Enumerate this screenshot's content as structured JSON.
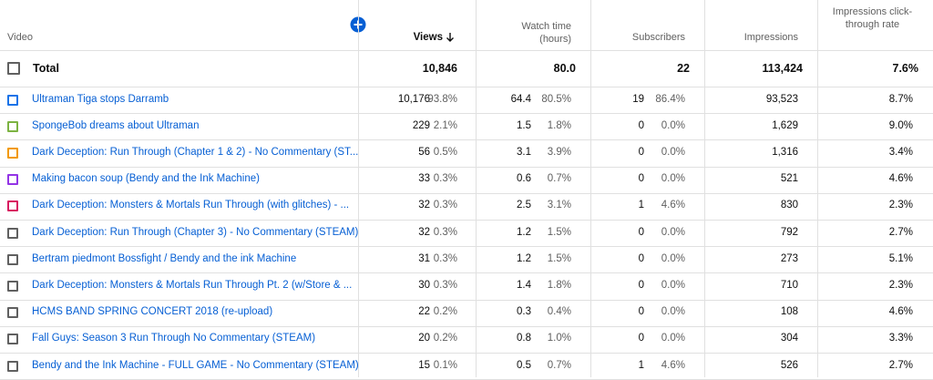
{
  "header": {
    "video": "Video",
    "views": "Views",
    "watch_time": "Watch time (hours)",
    "subscribers": "Subscribers",
    "impressions": "Impressions",
    "ctr": "Impressions click-through rate"
  },
  "total": {
    "label": "Total",
    "views": "10,846",
    "watch_time": "80.0",
    "subscribers": "22",
    "impressions": "113,424",
    "ctr": "7.6%"
  },
  "rows": [
    {
      "title": "Ultraman Tiga stops Darramb",
      "color": "#1a73e8",
      "views": "10,176",
      "views_pct": "93.8%",
      "watch": "64.4",
      "watch_pct": "80.5%",
      "subs": "19",
      "subs_pct": "86.4%",
      "impressions": "93,523",
      "ctr": "8.7%"
    },
    {
      "title": "SpongeBob dreams about Ultraman",
      "color": "#7cb342",
      "views": "229",
      "views_pct": "2.1%",
      "watch": "1.5",
      "watch_pct": "1.8%",
      "subs": "0",
      "subs_pct": "0.0%",
      "impressions": "1,629",
      "ctr": "9.0%"
    },
    {
      "title": "Dark Deception: Run Through (Chapter 1 & 2) - No Commentary (ST...",
      "color": "#f29900",
      "views": "56",
      "views_pct": "0.5%",
      "watch": "3.1",
      "watch_pct": "3.9%",
      "subs": "0",
      "subs_pct": "0.0%",
      "impressions": "1,316",
      "ctr": "3.4%"
    },
    {
      "title": "Making bacon soup (Bendy and the Ink Machine)",
      "color": "#9334e6",
      "views": "33",
      "views_pct": "0.3%",
      "watch": "0.6",
      "watch_pct": "0.7%",
      "subs": "0",
      "subs_pct": "0.0%",
      "impressions": "521",
      "ctr": "4.6%"
    },
    {
      "title": "Dark Deception: Monsters & Mortals Run Through (with glitches) - ...",
      "color": "#d81b60",
      "views": "32",
      "views_pct": "0.3%",
      "watch": "2.5",
      "watch_pct": "3.1%",
      "subs": "1",
      "subs_pct": "4.6%",
      "impressions": "830",
      "ctr": "2.3%"
    },
    {
      "title": "Dark Deception: Run Through (Chapter 3) - No Commentary (STEAM)",
      "color": "#606060",
      "views": "32",
      "views_pct": "0.3%",
      "watch": "1.2",
      "watch_pct": "1.5%",
      "subs": "0",
      "subs_pct": "0.0%",
      "impressions": "792",
      "ctr": "2.7%"
    },
    {
      "title": "Bertram piedmont Bossfight / Bendy and the ink Machine",
      "color": "#606060",
      "views": "31",
      "views_pct": "0.3%",
      "watch": "1.2",
      "watch_pct": "1.5%",
      "subs": "0",
      "subs_pct": "0.0%",
      "impressions": "273",
      "ctr": "5.1%"
    },
    {
      "title": "Dark Deception: Monsters & Mortals Run Through Pt. 2 (w/Store & ...",
      "color": "#606060",
      "views": "30",
      "views_pct": "0.3%",
      "watch": "1.4",
      "watch_pct": "1.8%",
      "subs": "0",
      "subs_pct": "0.0%",
      "impressions": "710",
      "ctr": "2.3%"
    },
    {
      "title": "HCMS BAND SPRING CONCERT 2018 (re-upload)",
      "color": "#606060",
      "views": "22",
      "views_pct": "0.2%",
      "watch": "0.3",
      "watch_pct": "0.4%",
      "subs": "0",
      "subs_pct": "0.0%",
      "impressions": "108",
      "ctr": "4.6%"
    },
    {
      "title": "Fall Guys: Season 3 Run Through No Commentary (STEAM)",
      "color": "#606060",
      "views": "20",
      "views_pct": "0.2%",
      "watch": "0.8",
      "watch_pct": "1.0%",
      "subs": "0",
      "subs_pct": "0.0%",
      "impressions": "304",
      "ctr": "3.3%"
    },
    {
      "title": "Bendy and the Ink Machine - FULL GAME - No Commentary (STEAM)",
      "color": "#606060",
      "views": "15",
      "views_pct": "0.1%",
      "watch": "0.5",
      "watch_pct": "0.7%",
      "subs": "1",
      "subs_pct": "4.6%",
      "impressions": "526",
      "ctr": "2.7%"
    }
  ]
}
